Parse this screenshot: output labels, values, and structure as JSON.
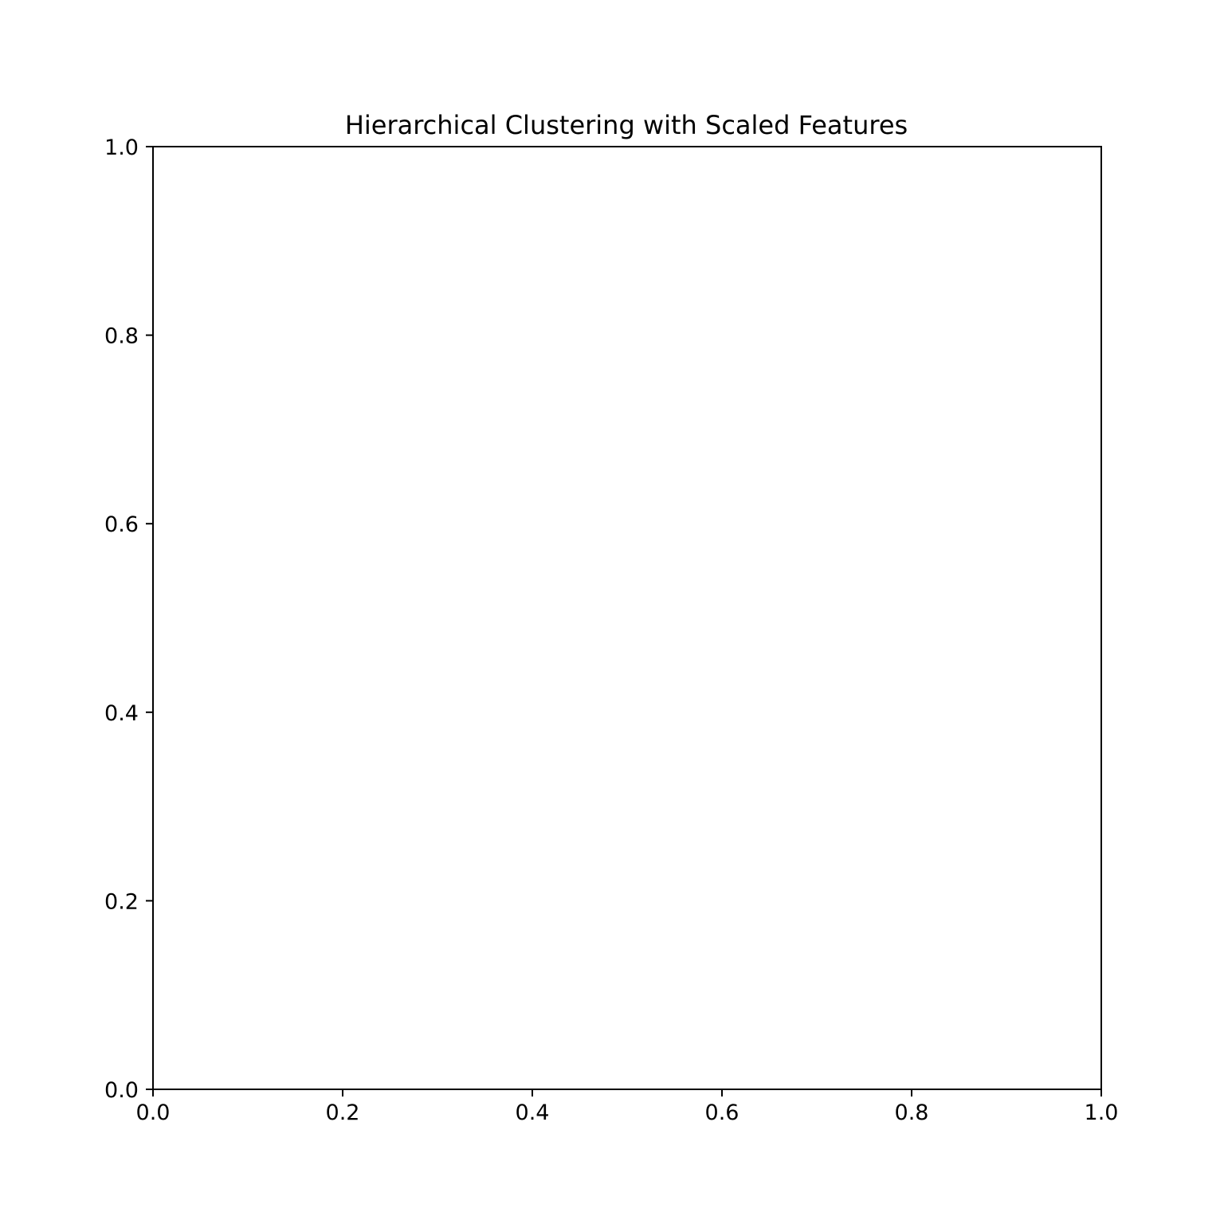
{
  "chart_data": {
    "type": "scatter",
    "title": "Hierarchical Clustering with Scaled Features",
    "xlabel": "",
    "ylabel": "",
    "xlim": [
      0.0,
      1.0
    ],
    "ylim": [
      0.0,
      1.0
    ],
    "x_ticks": [
      0.0,
      0.2,
      0.4,
      0.6,
      0.8,
      1.0
    ],
    "y_ticks": [
      0.0,
      0.2,
      0.4,
      0.6,
      0.8,
      1.0
    ],
    "x_tick_labels": [
      "0.0",
      "0.2",
      "0.4",
      "0.6",
      "0.8",
      "1.0"
    ],
    "y_tick_labels": [
      "0.0",
      "0.2",
      "0.4",
      "0.6",
      "0.8",
      "1.0"
    ],
    "grid": false,
    "series": []
  },
  "colors": {
    "background": "#ffffff",
    "axes": "#000000",
    "text": "#000000"
  }
}
